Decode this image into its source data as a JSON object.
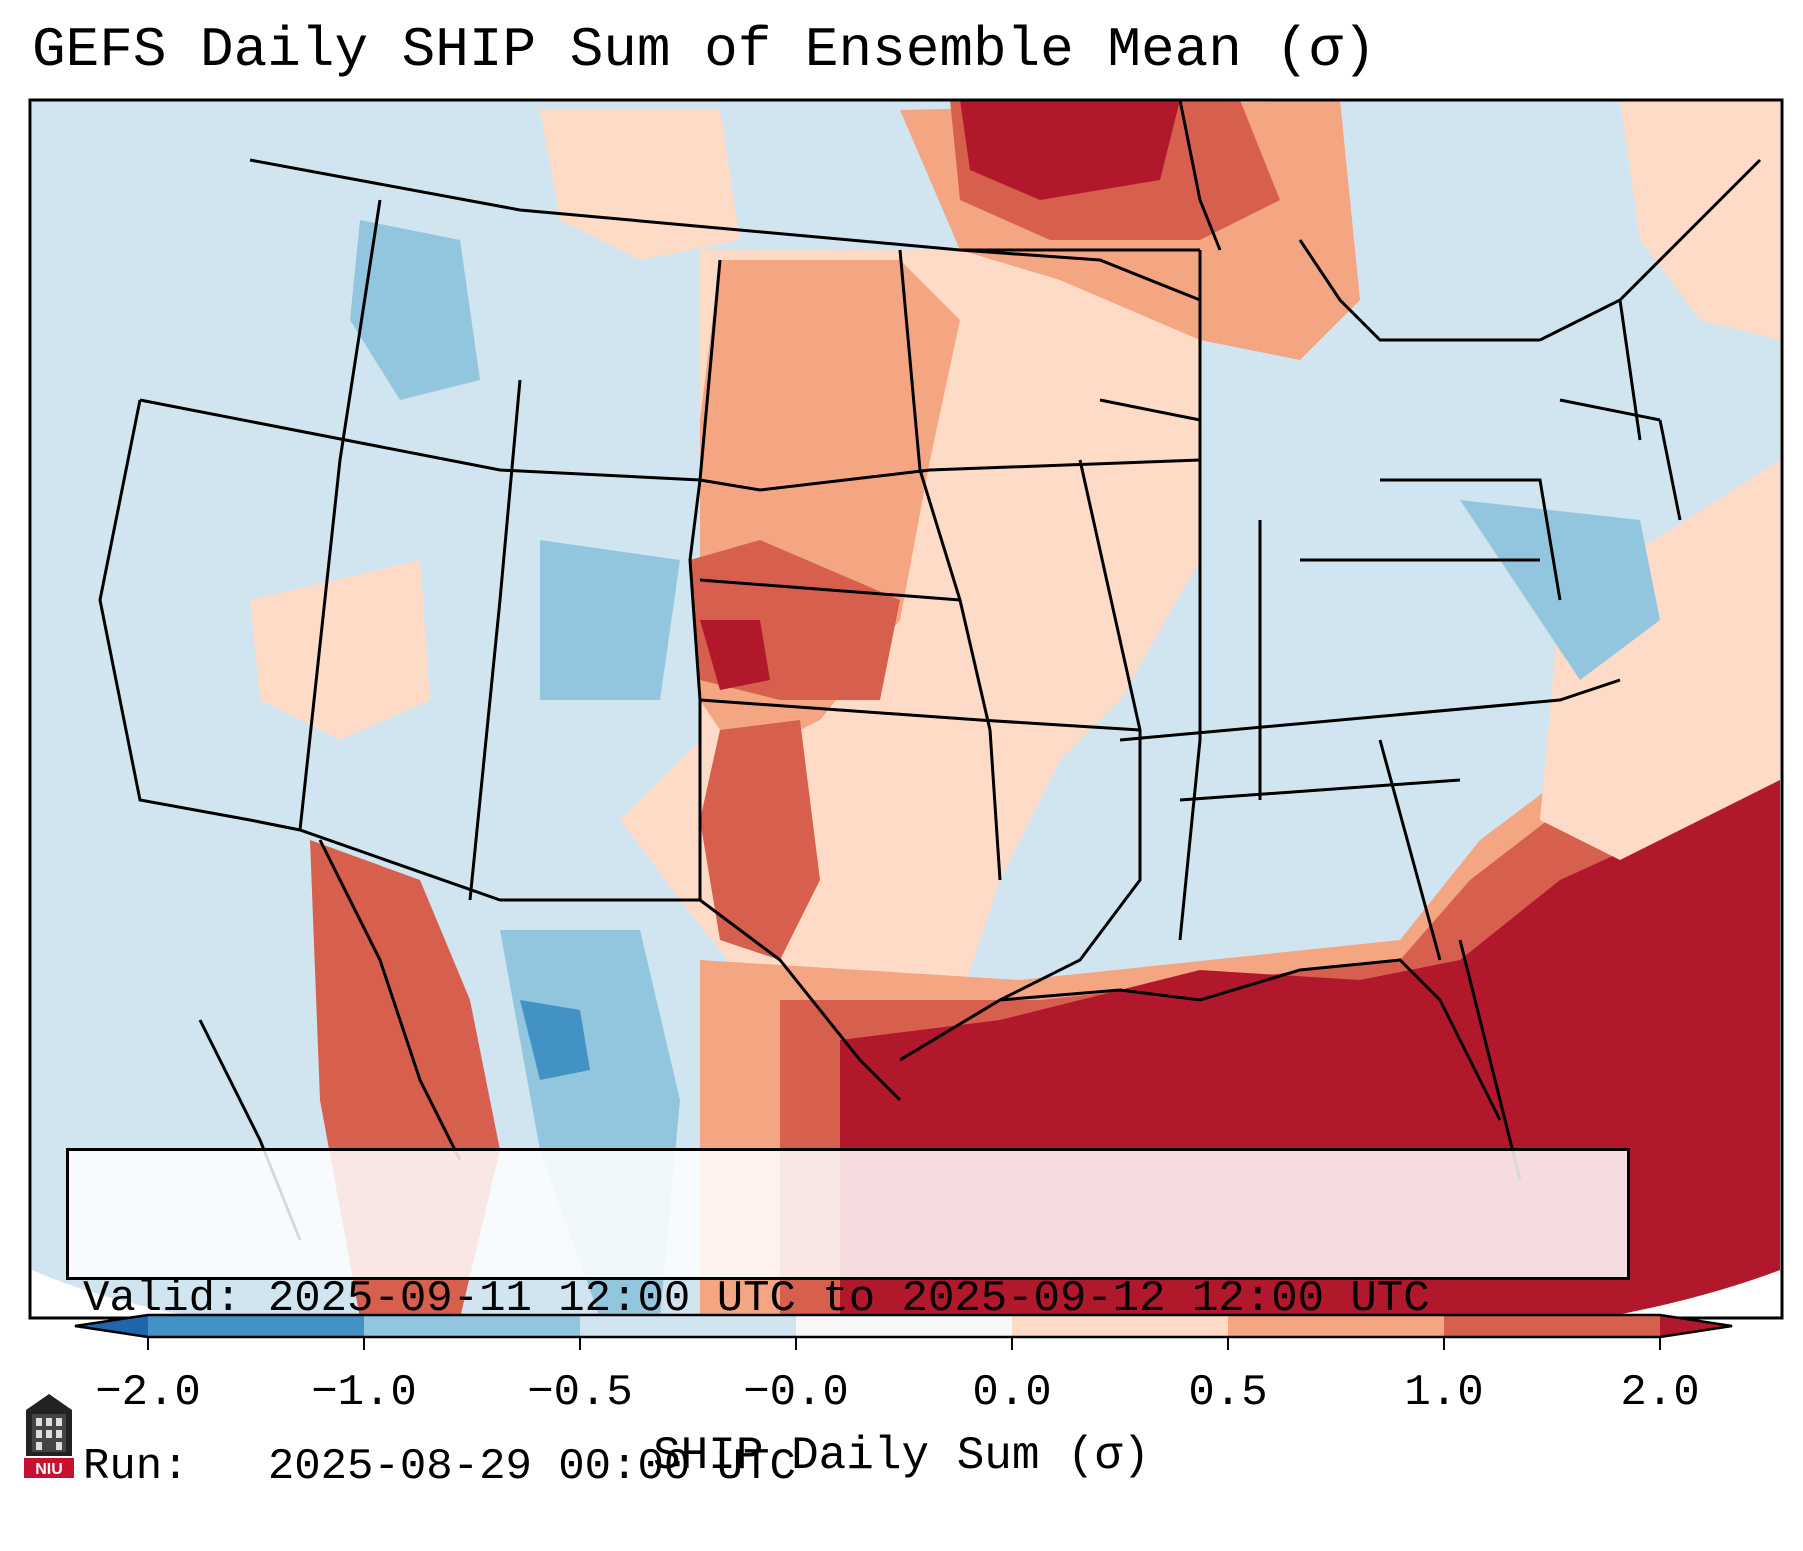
{
  "title": "GEFS Daily SHIP Sum of Ensemble Mean (σ)",
  "info": {
    "valid_line": "Valid: 2025-09-11 12:00 UTC to 2025-09-12 12:00 UTC",
    "run_line": "Run:   2025-08-29 00:00 UTC"
  },
  "colorbar": {
    "label": "SHIP Daily Sum (σ)",
    "ticks": [
      "−2.0",
      "−1.0",
      "−0.5",
      "−0.0",
      "0.0",
      "0.5",
      "1.0",
      "2.0"
    ],
    "colors": [
      "#4292c6",
      "#92c5de",
      "#d1e5f0",
      "#f7f7f7",
      "#fddbc7",
      "#f4a582",
      "#d6604d",
      "#b2182b"
    ],
    "extend_low_color": "#2166ac",
    "extend_high_color": "#b2182b"
  },
  "logo": {
    "text": "NIU"
  },
  "palette": {
    "ocean_neutral": "#d1e5f0",
    "border_color": "#000000"
  }
}
